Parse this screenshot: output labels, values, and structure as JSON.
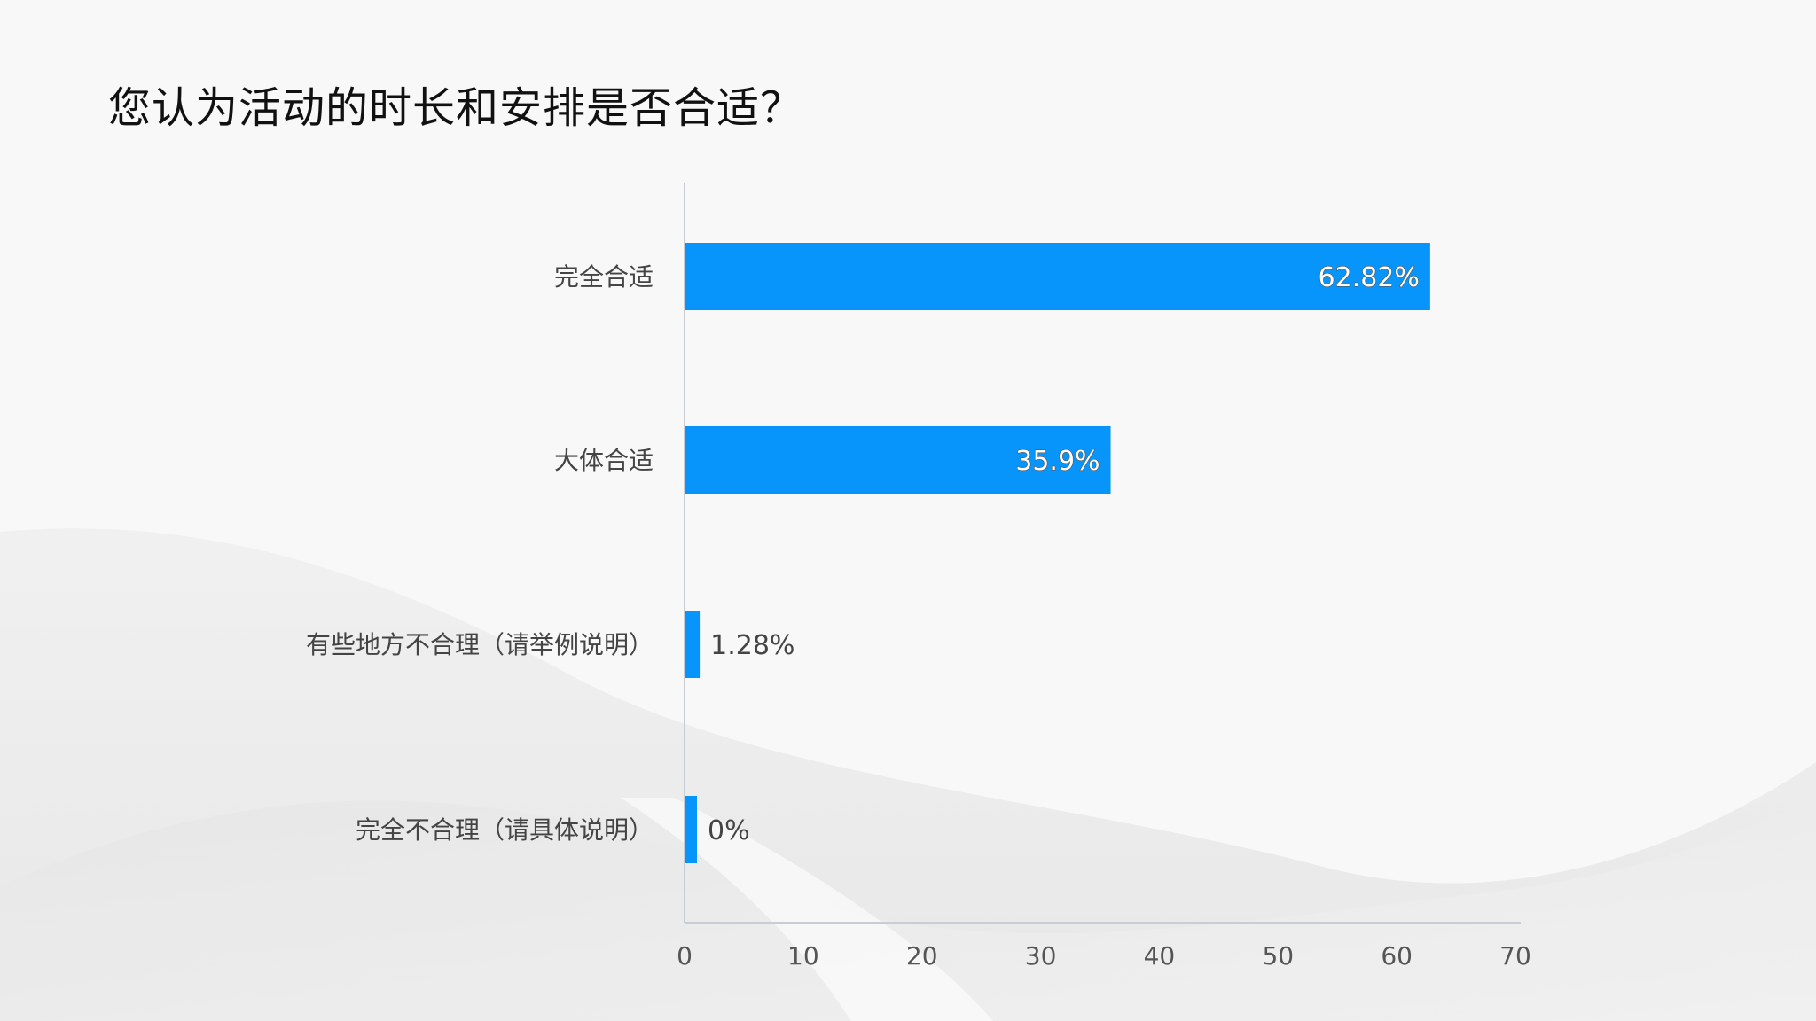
{
  "page": {
    "title": "您认为活动的时长和安排是否合适？"
  },
  "colors": {
    "bar": "#0895fb",
    "axis": "#c8ccd4",
    "background": "#f7f7f7"
  },
  "chart_data": {
    "type": "bar",
    "orientation": "horizontal",
    "categories": [
      "完全合适",
      "大体合适",
      "有些地方不合理（请举例说明）",
      "完全不合理（请具体说明）"
    ],
    "values": [
      62.82,
      35.9,
      1.28,
      0
    ],
    "value_labels": [
      "62.82%",
      "35.9%",
      "1.28%",
      "0%"
    ],
    "xlim": [
      0,
      70
    ],
    "xticks": [
      0,
      10,
      20,
      30,
      40,
      50,
      60,
      70
    ],
    "xtick_labels": [
      "0",
      "10",
      "20",
      "30",
      "40",
      "50",
      "60",
      "70"
    ],
    "grid": false,
    "legend": "none",
    "title": "您认为活动的时长和安排是否合适？"
  }
}
